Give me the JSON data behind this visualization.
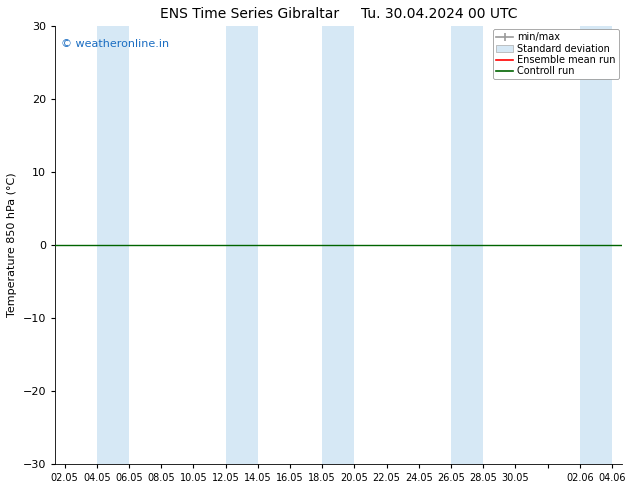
{
  "title_left": "ENS Time Series Gibraltar",
  "title_right": "Tu. 30.04.2024 00 UTC",
  "ylabel": "Temperature 850 hPa (°C)",
  "ylim": [
    -30,
    30
  ],
  "yticks": [
    -30,
    -20,
    -10,
    0,
    10,
    20,
    30
  ],
  "xlabel_ticks": [
    "02.05",
    "04.05",
    "06.05",
    "08.05",
    "10.05",
    "12.05",
    "14.05",
    "16.05",
    "18.05",
    "20.05",
    "22.05",
    "24.05",
    "26.05",
    "28.05",
    "30.05",
    "",
    "02.06",
    "04.06"
  ],
  "watermark": "© weatheronline.in",
  "watermark_color": "#1a6dc2",
  "bg_color": "#ffffff",
  "plot_bg_color": "#ffffff",
  "band_color": "#d6e8f5",
  "zero_line_color": "#006400",
  "zero_line_y": 0.0,
  "font_size": 8,
  "title_font_size": 10,
  "legend_font_size": 7
}
